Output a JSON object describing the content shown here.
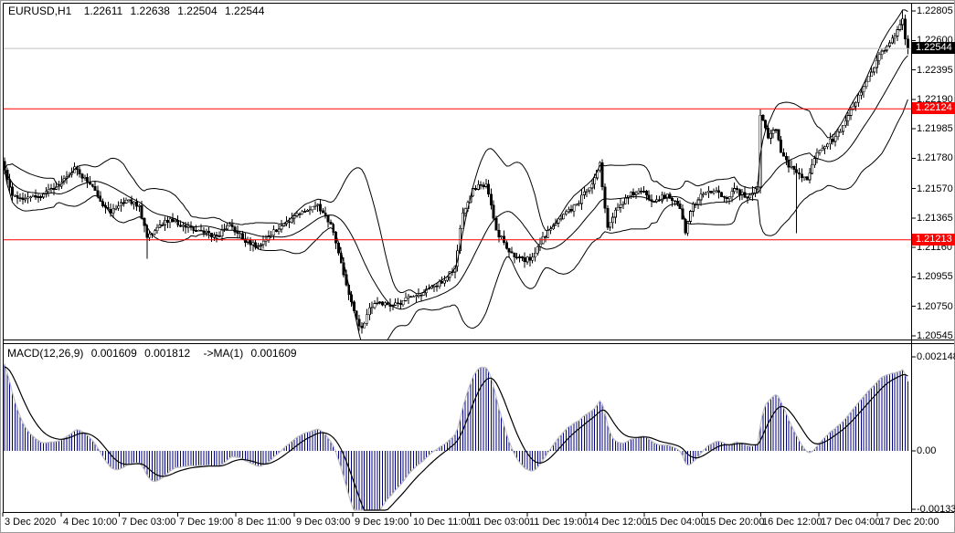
{
  "header": {
    "symbol": "EURUSD,H1",
    "open": "1.22611",
    "high": "1.22638",
    "low": "1.22504",
    "close": "1.22544"
  },
  "macd_header": {
    "name": "MACD(12,26,9)",
    "main": "0.001609",
    "signal": "0.001812",
    "ma_label": "->MA(1)",
    "ma_value": "0.001609"
  },
  "colors": {
    "background": "#ffffff",
    "frame": "#000000",
    "bar_outline": "#000000",
    "bull_fill": "#ffffff",
    "bear_fill": "#000000",
    "bollinger": "#000000",
    "hline": "#ff0000",
    "hline_tag_bg": "#ff0000",
    "hline_tag_text": "#ffffff",
    "bid_line": "#c0c0c0",
    "bid_tag_bg": "#000000",
    "bid_tag_text": "#ffffff",
    "macd_hist": "#000080",
    "macd_main_line": "#c0c0c0",
    "macd_signal": "#000000",
    "text": "#000000"
  },
  "price_axis_labels": [
    "1.22805",
    "1.22600",
    "1.22395",
    "1.22190",
    "1.21985",
    "1.21780",
    "1.21570",
    "1.21365",
    "1.21160",
    "1.20955",
    "1.20750",
    "1.20545"
  ],
  "macd_axis_labels": [
    "0.002148",
    "0.00",
    "-0.001331"
  ],
  "time_axis_labels": [
    "3 Dec 2020",
    "4 Dec 10:00",
    "7 Dec 03:00",
    "7 Dec 19:00",
    "8 Dec 11:00",
    "9 Dec 03:00",
    "9 Dec 19:00",
    "10 Dec 11:00",
    "11 Dec 03:00",
    "11 Dec 19:00",
    "14 Dec 12:00",
    "15 Dec 04:00",
    "15 Dec 20:00",
    "16 Dec 12:00",
    "17 Dec 04:00",
    "17 Dec 20:00"
  ],
  "chart_data": {
    "type": "candlestick",
    "symbol": "EURUSD",
    "timeframe": "H1",
    "title": "EURUSD,H1  1.22611 1.22638 1.22504 1.22544",
    "candles_count": 350,
    "price_range": {
      "top": 1.22805,
      "bottom": 1.20545
    },
    "macd_range": {
      "top": 0.002148,
      "zero": 0.0,
      "bottom": -0.001331
    },
    "ohlc_last": {
      "open": 1.22611,
      "high": 1.22638,
      "low": 1.22504,
      "close": 1.22544
    },
    "levels": {
      "horizontal_lines": [
        {
          "value": 1.22124,
          "label": "1.22124"
        },
        {
          "value": 1.21213,
          "label": "1.21213"
        }
      ],
      "bid": {
        "value": 1.22544,
        "label": "1.22544"
      }
    },
    "indicators": {
      "bollinger": {
        "period": 20,
        "deviation": 2
      },
      "macd": {
        "fast": 12,
        "slow": 26,
        "signal": 9,
        "seed_diff": 0.00215,
        "seed_signal": 0.0019
      }
    },
    "close_anchors": [
      [
        0,
        1.217
      ],
      [
        3,
        1.2152
      ],
      [
        8,
        1.215
      ],
      [
        15,
        1.2153
      ],
      [
        20,
        1.2158
      ],
      [
        24,
        1.2165
      ],
      [
        27,
        1.2172
      ],
      [
        33,
        1.216
      ],
      [
        38,
        1.2145
      ],
      [
        41,
        1.214
      ],
      [
        47,
        1.2149
      ],
      [
        52,
        1.2145
      ],
      [
        55,
        1.2123
      ],
      [
        59,
        1.213
      ],
      [
        64,
        1.2136
      ],
      [
        70,
        1.213
      ],
      [
        75,
        1.2128
      ],
      [
        82,
        1.2124
      ],
      [
        87,
        1.2132
      ],
      [
        92,
        1.2122
      ],
      [
        98,
        1.2117
      ],
      [
        102,
        1.2124
      ],
      [
        107,
        1.2131
      ],
      [
        112,
        1.2138
      ],
      [
        117,
        1.2142
      ],
      [
        121,
        1.2146
      ],
      [
        123,
        1.214
      ],
      [
        126,
        1.2132
      ],
      [
        129,
        1.2112
      ],
      [
        132,
        1.209
      ],
      [
        136,
        1.2066
      ],
      [
        138,
        1.206
      ],
      [
        141,
        1.2074
      ],
      [
        145,
        1.2078
      ],
      [
        149,
        1.2075
      ],
      [
        154,
        1.2079
      ],
      [
        160,
        1.2083
      ],
      [
        165,
        1.2089
      ],
      [
        170,
        1.2093
      ],
      [
        174,
        1.2103
      ],
      [
        177,
        1.214
      ],
      [
        181,
        1.2157
      ],
      [
        186,
        1.216
      ],
      [
        190,
        1.2128
      ],
      [
        195,
        1.2113
      ],
      [
        201,
        1.2106
      ],
      [
        205,
        1.2112
      ],
      [
        210,
        1.2128
      ],
      [
        215,
        1.2136
      ],
      [
        221,
        1.2146
      ],
      [
        227,
        1.216
      ],
      [
        230,
        1.2175
      ],
      [
        233,
        1.213
      ],
      [
        236,
        1.2142
      ],
      [
        241,
        1.2152
      ],
      [
        246,
        1.2155
      ],
      [
        251,
        1.2148
      ],
      [
        256,
        1.2153
      ],
      [
        261,
        1.2143
      ],
      [
        263,
        1.2126
      ],
      [
        266,
        1.2146
      ],
      [
        270,
        1.2153
      ],
      [
        274,
        1.2155
      ],
      [
        279,
        1.215
      ],
      [
        282,
        1.2157
      ],
      [
        286,
        1.2151
      ],
      [
        289,
        1.2154
      ],
      [
        291,
        1.2158
      ],
      [
        292,
        1.2208
      ],
      [
        295,
        1.2192
      ],
      [
        298,
        1.2198
      ],
      [
        300,
        1.2182
      ],
      [
        303,
        1.2172
      ],
      [
        306,
        1.2168
      ],
      [
        310,
        1.2163
      ],
      [
        313,
        1.2178
      ],
      [
        317,
        1.2186
      ],
      [
        321,
        1.2193
      ],
      [
        324,
        1.2201
      ],
      [
        327,
        1.2212
      ],
      [
        330,
        1.2222
      ],
      [
        334,
        1.2235
      ],
      [
        337,
        1.2246
      ],
      [
        341,
        1.2256
      ],
      [
        344,
        1.2263
      ],
      [
        346,
        1.2271
      ],
      [
        347,
        1.2275
      ],
      [
        348,
        1.2261
      ],
      [
        349,
        1.22544
      ]
    ],
    "special_wicks": [
      {
        "index": 55,
        "low": 1.2108
      },
      {
        "index": 138,
        "low": 1.2056
      },
      {
        "index": 292,
        "high": 1.2212
      },
      {
        "index": 306,
        "low": 1.2126
      },
      {
        "index": 347,
        "high": 1.2281
      }
    ]
  }
}
